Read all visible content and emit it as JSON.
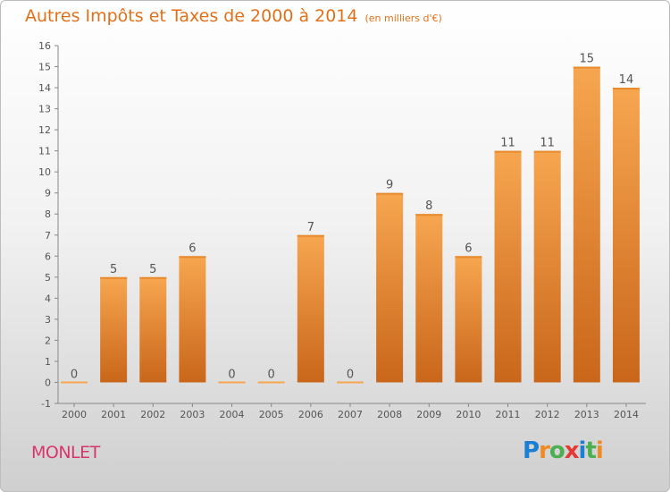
{
  "header": {
    "title": "Autres Impôts et Taxes de 2000 à 2014",
    "subtitle": "(en milliers d'€)"
  },
  "commune": "MONLET",
  "logo": {
    "letters": [
      {
        "char": "P",
        "color": "#1b7fd4"
      },
      {
        "char": "r",
        "color": "#f08a24"
      },
      {
        "char": "o",
        "color": "#4caf50"
      },
      {
        "char": "x",
        "color": "#e53935"
      },
      {
        "char": "i",
        "color": "#1b7fd4"
      },
      {
        "char": "t",
        "color": "#4caf50"
      },
      {
        "char": "i",
        "color": "#f08a24"
      }
    ]
  },
  "chart_data": {
    "type": "bar",
    "categories": [
      "2000",
      "2001",
      "2002",
      "2003",
      "2004",
      "2005",
      "2006",
      "2007",
      "2008",
      "2009",
      "2010",
      "2011",
      "2012",
      "2013",
      "2014"
    ],
    "values": [
      0,
      5,
      5,
      6,
      0,
      0,
      7,
      0,
      9,
      8,
      6,
      11,
      11,
      15,
      14
    ],
    "data_labels": [
      "0",
      "5",
      "5",
      "6",
      "0",
      "0",
      "7",
      "0",
      "9",
      "8",
      "6",
      "11",
      "11",
      "15",
      "14"
    ],
    "y_ticks": [
      -1,
      0,
      1,
      2,
      3,
      4,
      5,
      6,
      7,
      8,
      9,
      10,
      11,
      12,
      13,
      14,
      15,
      16
    ],
    "ylim": [
      -1,
      16
    ],
    "grid": false,
    "colors": {
      "bar_light": "#f7a650",
      "bar_dark": "#c9661a",
      "text": "#555555",
      "axis": "#888888"
    }
  }
}
